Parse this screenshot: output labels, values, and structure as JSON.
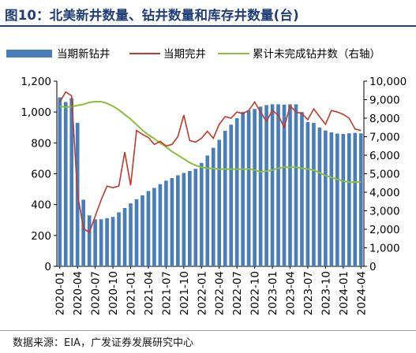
{
  "figure": {
    "title": "图10：北美新井数量、钻井数量和库存井数量(台)",
    "source": "数据来源：EIA，广发证券发展研究中心"
  },
  "colors": {
    "bars": "#4a7ebb",
    "completed": "#c0392b",
    "duc": "#8cbf3a",
    "title": "#1f3e78"
  },
  "chart_data": {
    "type": "bar",
    "legend": {
      "position": "top",
      "entries": [
        "当期新钻井",
        "当期完井",
        "累计未完成钻井数（右轴）"
      ]
    },
    "x_tick_labels": [
      "2020-01",
      "2020-04",
      "2020-07",
      "2020-10",
      "2021-01",
      "2021-04",
      "2021-07",
      "2021-10",
      "2022-01",
      "2022-04",
      "2022-07",
      "2022-10",
      "2023-01",
      "2023-04",
      "2023-07",
      "2023-10",
      "2024-01",
      "2024-04"
    ],
    "y_left": {
      "min": 0,
      "max": 1200,
      "ticks": [
        "0",
        "200",
        "400",
        "600",
        "800",
        "1,000",
        "1,200"
      ]
    },
    "y_right": {
      "min": 0,
      "max": 10000,
      "ticks": [
        "0",
        "1,000",
        "2,000",
        "3,000",
        "4,000",
        "5,000",
        "6,000",
        "7,000",
        "8,000",
        "9,000",
        "10,000"
      ]
    },
    "grid": false,
    "categories": [
      "2020-01",
      "2020-02",
      "2020-03",
      "2020-04",
      "2020-05",
      "2020-06",
      "2020-07",
      "2020-08",
      "2020-09",
      "2020-10",
      "2020-11",
      "2020-12",
      "2021-01",
      "2021-02",
      "2021-03",
      "2021-04",
      "2021-05",
      "2021-06",
      "2021-07",
      "2021-08",
      "2021-09",
      "2021-10",
      "2021-11",
      "2021-12",
      "2022-01",
      "2022-02",
      "2022-03",
      "2022-04",
      "2022-05",
      "2022-06",
      "2022-07",
      "2022-08",
      "2022-09",
      "2022-10",
      "2022-11",
      "2022-12",
      "2023-01",
      "2023-02",
      "2023-03",
      "2023-04",
      "2023-05",
      "2023-06",
      "2023-07",
      "2023-08",
      "2023-09",
      "2023-10",
      "2023-11",
      "2023-12",
      "2024-01",
      "2024-02",
      "2024-03",
      "2024-04"
    ],
    "series": [
      {
        "name": "当期新钻井",
        "kind": "bar",
        "axis": "left",
        "values": [
          1095,
          1065,
          1090,
          930,
          432,
          330,
          305,
          305,
          312,
          320,
          350,
          378,
          408,
          435,
          460,
          488,
          508,
          532,
          555,
          572,
          590,
          605,
          618,
          632,
          670,
          718,
          768,
          820,
          878,
          918,
          960,
          1000,
          1010,
          1020,
          1035,
          1045,
          1050,
          1050,
          1048,
          1050,
          1050,
          1000,
          935,
          930,
          900,
          880,
          868,
          860,
          858,
          862,
          865,
          862
        ]
      },
      {
        "name": "当期完井",
        "kind": "line",
        "axis": "left",
        "values": [
          1065,
          1130,
          1105,
          470,
          245,
          220,
          325,
          430,
          520,
          510,
          520,
          740,
          525,
          880,
          855,
          835,
          790,
          810,
          780,
          790,
          840,
          980,
          815,
          805,
          830,
          875,
          830,
          920,
          970,
          960,
          1000,
          990,
          1010,
          1065,
          1000,
          940,
          1010,
          980,
          900,
          1040,
          1000,
          990,
          950,
          1020,
          970,
          920,
          1010,
          1000,
          985,
          960,
          890,
          880
        ]
      },
      {
        "name": "累计未完成钻井数（右轴）",
        "kind": "line",
        "axis": "right",
        "values": [
          8650,
          8600,
          8620,
          8690,
          8750,
          8850,
          8900,
          8890,
          8800,
          8650,
          8450,
          8200,
          7950,
          7650,
          7350,
          7100,
          6900,
          6650,
          6450,
          6200,
          6000,
          5800,
          5600,
          5450,
          5350,
          5300,
          5280,
          5250,
          5250,
          5250,
          5250,
          5250,
          5250,
          5200,
          5100,
          5150,
          5200,
          5300,
          5350,
          5350,
          5350,
          5300,
          5250,
          5200,
          5050,
          4900,
          4800,
          4700,
          4600,
          4550,
          4550,
          4560
        ]
      }
    ]
  }
}
